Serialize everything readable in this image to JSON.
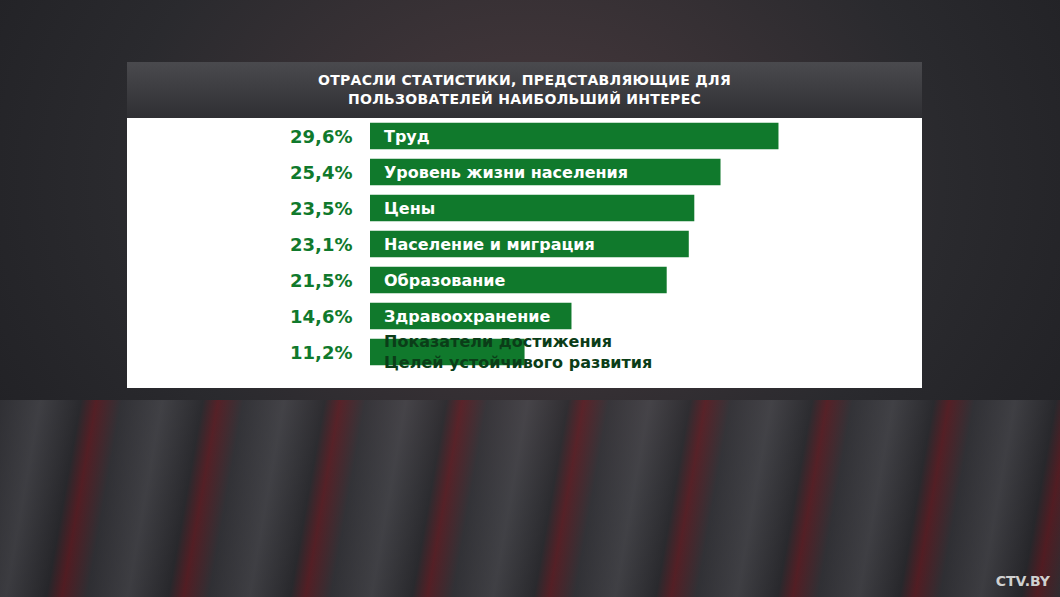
{
  "chart_data": {
    "type": "bar",
    "title": "ОТРАСЛИ СТАТИСТИКИ, ПРЕДСТАВЛЯЮЩИЕ ДЛЯ ПОЛЬЗОВАТЕЛЕЙ НАИБОЛЬШИЙ ИНТЕРЕС",
    "categories": [
      "Труд",
      "Уровень жизни населения",
      "Цены",
      "Население и миграция",
      "Образование",
      "Здравоохранение",
      "Показатели достижения Целей устойчивого развития"
    ],
    "values": [
      29.6,
      25.4,
      23.5,
      23.1,
      21.5,
      14.6,
      11.2
    ],
    "value_labels": [
      "29,6%",
      "25,4%",
      "23,5%",
      "23,1%",
      "21,5%",
      "14,6%",
      "11,2%"
    ],
    "color": "#10792c",
    "orientation": "horizontal",
    "data_labels": true,
    "tick_labels": false,
    "grid": false,
    "xlim": [
      0,
      40
    ],
    "logo": "CTV.BY"
  }
}
